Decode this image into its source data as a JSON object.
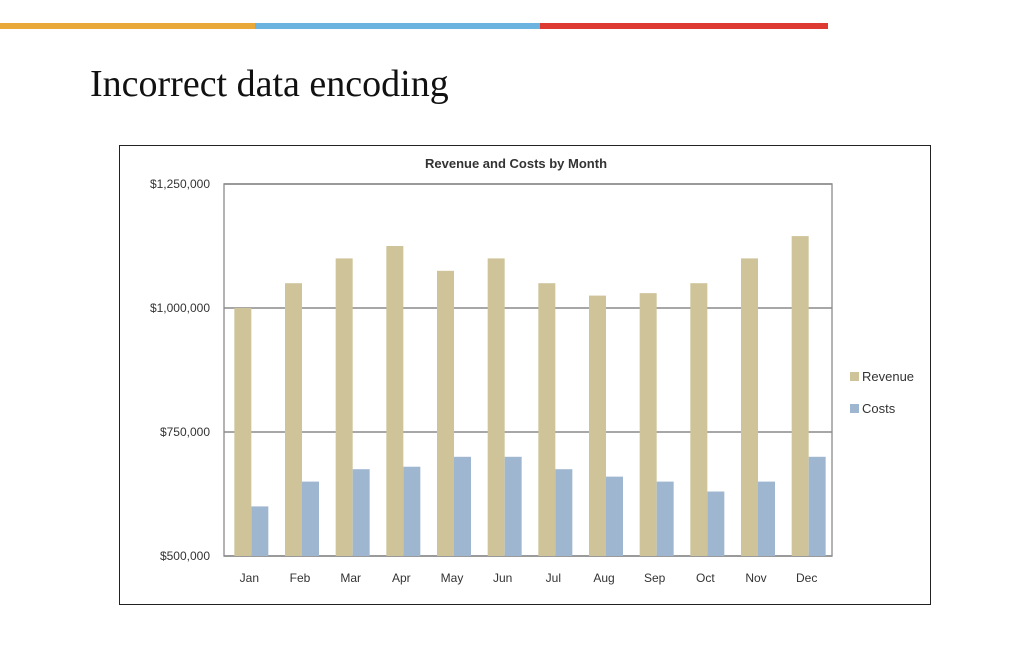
{
  "slide": {
    "title": "Incorrect data encoding",
    "accent_colors": [
      "#e9a93a",
      "#6cb4df",
      "#dd3a32"
    ]
  },
  "chart_data": {
    "type": "bar",
    "title": "Revenue and Costs by Month",
    "categories": [
      "Jan",
      "Feb",
      "Mar",
      "Apr",
      "May",
      "Jun",
      "Jul",
      "Aug",
      "Sep",
      "Oct",
      "Nov",
      "Dec"
    ],
    "series": [
      {
        "name": "Revenue",
        "color": "#cfc39a",
        "values": [
          1000000,
          1050000,
          1100000,
          1125000,
          1075000,
          1100000,
          1050000,
          1025000,
          1030000,
          1050000,
          1100000,
          1145000
        ]
      },
      {
        "name": "Costs",
        "color": "#9fb6d0",
        "values": [
          600000,
          650000,
          675000,
          680000,
          700000,
          700000,
          675000,
          660000,
          650000,
          630000,
          650000,
          700000
        ]
      }
    ],
    "ylim": [
      500000,
      1250000
    ],
    "yticks": [
      500000,
      750000,
      1000000,
      1250000
    ],
    "ytick_labels": [
      "$500,000",
      "$750,000",
      "$1,000,000",
      "$1,250,000"
    ],
    "xlabel": "",
    "ylabel": "",
    "grid": true,
    "legend_position": "right"
  }
}
